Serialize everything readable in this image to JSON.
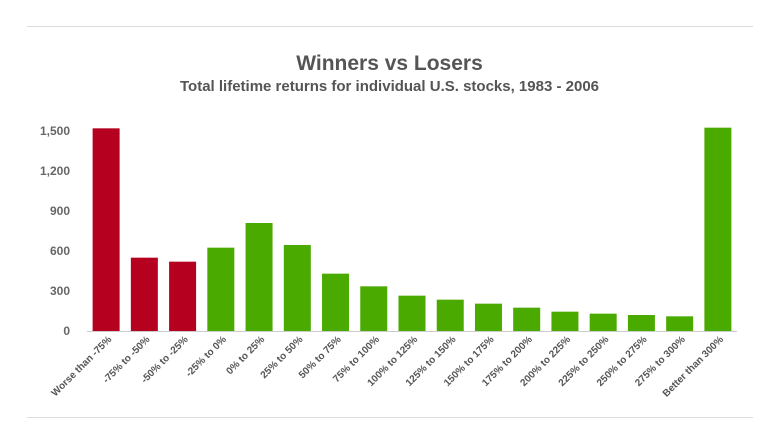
{
  "chart_data": {
    "type": "bar",
    "title": "Winners vs Losers",
    "subtitle": "Total lifetime returns for individual U.S. stocks, 1983 - 2006",
    "xlabel": "",
    "ylabel": "",
    "ylim": [
      0,
      1500
    ],
    "yticks": [
      0,
      300,
      600,
      900,
      1200,
      1500
    ],
    "ytick_labels": [
      "0",
      "300",
      "600",
      "900",
      "1,200",
      "1,500"
    ],
    "grid": false,
    "categories": [
      "Worse than -75%",
      "-75% to -50%",
      "-50% to -25%",
      "-25% to 0%",
      "0% to 25%",
      "25% to 50%",
      "50% to 75%",
      "75% to 100%",
      "100% to 125%",
      "125% to 150%",
      "150% to 175%",
      "175% to 200%",
      "200% to 225%",
      "225% to 250%",
      "250% to 275%",
      "275% to 300%",
      "Better than 300%"
    ],
    "values": [
      1520,
      550,
      520,
      625,
      810,
      645,
      430,
      335,
      265,
      235,
      205,
      175,
      145,
      130,
      120,
      110,
      1525
    ],
    "colors": {
      "loser": "#b5001f",
      "winner": "#4aaa00",
      "axis": "#cccccc"
    },
    "bar_color_groups": [
      "loser",
      "loser",
      "loser",
      "winner",
      "winner",
      "winner",
      "winner",
      "winner",
      "winner",
      "winner",
      "winner",
      "winner",
      "winner",
      "winner",
      "winner",
      "winner",
      "winner"
    ]
  }
}
